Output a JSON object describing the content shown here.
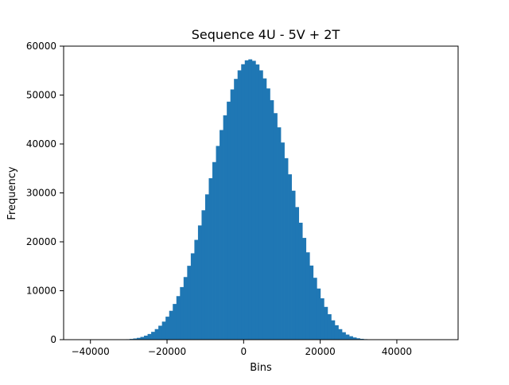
{
  "chart_data": {
    "type": "bar",
    "title": "Sequence 4U - 5V + 2T",
    "xlabel": "Bins",
    "ylabel": "Frequency",
    "xlim": [
      -47000,
      56000
    ],
    "ylim": [
      0,
      60000
    ],
    "xticks": [
      -40000,
      -20000,
      0,
      20000,
      40000
    ],
    "xtick_labels": [
      "−40000",
      "−20000",
      "0",
      "20000",
      "40000"
    ],
    "yticks": [
      0,
      10000,
      20000,
      30000,
      40000,
      50000,
      60000
    ],
    "ytick_labels": [
      "0",
      "10000",
      "20000",
      "30000",
      "40000",
      "50000",
      "60000"
    ],
    "bar_color": "#1f77b4",
    "grid": false,
    "legend": "none",
    "bin_range": [
      -42000,
      52000
    ],
    "bin_count": 100,
    "frequencies": [
      0,
      0,
      0,
      0,
      0,
      1,
      2,
      4,
      8,
      15,
      29,
      52,
      88,
      150,
      240,
      370,
      560,
      820,
      1160,
      1600,
      2160,
      2850,
      3690,
      4700,
      5900,
      7300,
      8900,
      10750,
      12800,
      15100,
      17650,
      20400,
      23350,
      26450,
      29700,
      33000,
      36300,
      39600,
      42850,
      45850,
      48650,
      51150,
      53300,
      55050,
      56300,
      57100,
      57300,
      57000,
      56250,
      55050,
      53400,
      51350,
      48950,
      46300,
      43400,
      40300,
      37100,
      33800,
      30450,
      27100,
      23900,
      20800,
      17850,
      15150,
      12650,
      10450,
      8450,
      6700,
      5200,
      3950,
      2950,
      2150,
      1520,
      1040,
      700,
      450,
      280,
      170,
      100,
      55,
      30,
      15,
      8,
      4,
      2,
      1,
      0,
      0,
      0,
      0,
      0,
      0,
      0,
      0,
      0,
      0,
      0,
      0,
      0,
      0
    ]
  }
}
